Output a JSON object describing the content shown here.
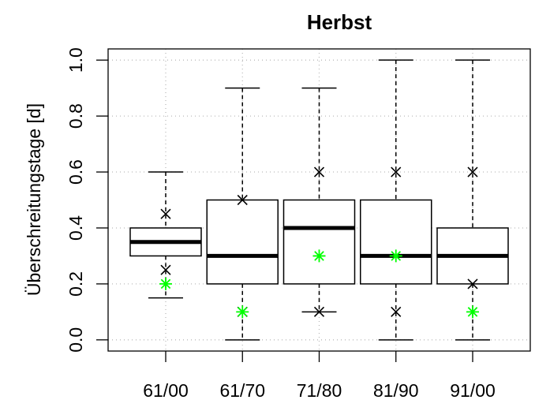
{
  "chart_data": {
    "type": "boxplot",
    "title": "Herbst",
    "y_label": "Überschreitungstage [d]",
    "categories": [
      "61/00",
      "61/70",
      "71/80",
      "81/90",
      "91/00"
    ],
    "boxes": [
      {
        "min": 0.15,
        "q1": 0.3,
        "median": 0.35,
        "q3": 0.4,
        "max": 0.6,
        "crosses": [
          0.45,
          0.25
        ],
        "star": 0.2
      },
      {
        "min": 0,
        "q1": 0.2,
        "median": 0.3,
        "q3": 0.5,
        "max": 0.9,
        "crosses": [
          0.5,
          0.1
        ],
        "star": 0.1
      },
      {
        "min": 0.1,
        "q1": 0.2,
        "median": 0.4,
        "q3": 0.5,
        "max": 0.9,
        "crosses": [
          0.6,
          0.1
        ],
        "star": 0.3
      },
      {
        "min": 0,
        "q1": 0.2,
        "median": 0.3,
        "q3": 0.5,
        "max": 1.0,
        "crosses": [
          0.6,
          0.1
        ],
        "star": 0.3
      },
      {
        "min": 0,
        "q1": 0.2,
        "median": 0.3,
        "q3": 0.4,
        "max": 1.0,
        "crosses": [
          0.6,
          0.2
        ],
        "star": 0.1
      }
    ],
    "box_color": "#000000",
    "star_color": "#00ff00",
    "ylim": [
      -0.04,
      1.04
    ],
    "yticks": [
      {
        "value": 0,
        "label": "0.0"
      },
      0.2,
      0.4,
      0.6,
      0.8,
      {
        "value": 1,
        "label": "1.0"
      }
    ],
    "grid": true
  }
}
